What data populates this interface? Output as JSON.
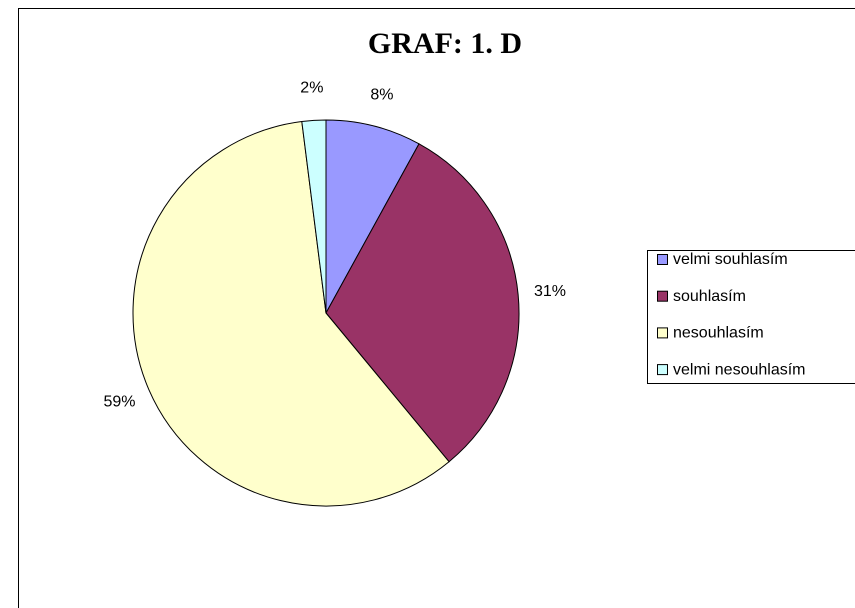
{
  "chart_data": {
    "type": "pie",
    "title": "GRAF: 1. D",
    "categories": [
      "velmi souhlasím",
      "souhlasím",
      "nesouhlasím",
      "velmi nesouhlasím"
    ],
    "values": [
      8,
      31,
      59,
      2
    ],
    "value_labels": [
      "8%",
      "31%",
      "59%",
      "2%"
    ],
    "colors": [
      "#9999ff",
      "#993366",
      "#ffffcc",
      "#ccffff"
    ],
    "legend": "right"
  }
}
